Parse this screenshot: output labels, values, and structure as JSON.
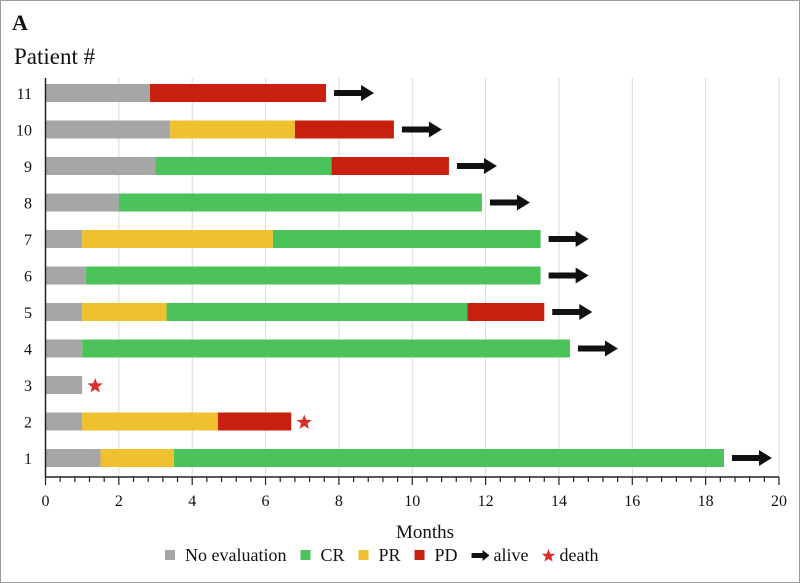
{
  "panel_label": "A",
  "chart_data": {
    "type": "bar",
    "orientation": "horizontal-stacked",
    "title": "",
    "ylabel": "Patient #",
    "xlabel": "Months",
    "xlim": [
      0,
      20
    ],
    "x_major_ticks": [
      0,
      2,
      4,
      6,
      8,
      10,
      12,
      14,
      16,
      18,
      20
    ],
    "x_minor_tick_step": 0.4,
    "grid": "vertical, major ticks",
    "legend_position": "bottom",
    "categories": [
      "1",
      "2",
      "3",
      "4",
      "5",
      "6",
      "7",
      "8",
      "9",
      "10",
      "11"
    ],
    "status_colors": {
      "No evaluation": "#A6A6A6",
      "CR": "#4CC35A",
      "PR": "#EFC12E",
      "PD": "#C8200F"
    },
    "marker_colors": {
      "alive": "#111111",
      "death": "#D9302A"
    },
    "patients": [
      {
        "id": "1",
        "segments": [
          {
            "status": "No evaluation",
            "start": 0,
            "end": 1.5
          },
          {
            "status": "PR",
            "start": 1.5,
            "end": 3.5
          },
          {
            "status": "CR",
            "start": 3.5,
            "end": 18.5
          }
        ],
        "outcome": "alive"
      },
      {
        "id": "2",
        "segments": [
          {
            "status": "No evaluation",
            "start": 0,
            "end": 1.0
          },
          {
            "status": "PR",
            "start": 1.0,
            "end": 4.7
          },
          {
            "status": "PD",
            "start": 4.7,
            "end": 6.7
          }
        ],
        "outcome": "death"
      },
      {
        "id": "3",
        "segments": [
          {
            "status": "No evaluation",
            "start": 0,
            "end": 1.0
          }
        ],
        "outcome": "death"
      },
      {
        "id": "4",
        "segments": [
          {
            "status": "No evaluation",
            "start": 0,
            "end": 1.0
          },
          {
            "status": "CR",
            "start": 1.0,
            "end": 14.3
          }
        ],
        "outcome": "alive"
      },
      {
        "id": "5",
        "segments": [
          {
            "status": "No evaluation",
            "start": 0,
            "end": 1.0
          },
          {
            "status": "PR",
            "start": 1.0,
            "end": 3.3
          },
          {
            "status": "CR",
            "start": 3.3,
            "end": 11.5
          },
          {
            "status": "PD",
            "start": 11.5,
            "end": 13.6
          }
        ],
        "outcome": "alive"
      },
      {
        "id": "6",
        "segments": [
          {
            "status": "No evaluation",
            "start": 0,
            "end": 1.1
          },
          {
            "status": "CR",
            "start": 1.1,
            "end": 13.5
          }
        ],
        "outcome": "alive"
      },
      {
        "id": "7",
        "segments": [
          {
            "status": "No evaluation",
            "start": 0,
            "end": 1.0
          },
          {
            "status": "PR",
            "start": 1.0,
            "end": 6.2
          },
          {
            "status": "CR",
            "start": 6.2,
            "end": 13.5
          }
        ],
        "outcome": "alive"
      },
      {
        "id": "8",
        "segments": [
          {
            "status": "No evaluation",
            "start": 0,
            "end": 2.0
          },
          {
            "status": "CR",
            "start": 2.0,
            "end": 11.9
          }
        ],
        "outcome": "alive"
      },
      {
        "id": "9",
        "segments": [
          {
            "status": "No evaluation",
            "start": 0,
            "end": 3.0
          },
          {
            "status": "CR",
            "start": 3.0,
            "end": 7.8
          },
          {
            "status": "PD",
            "start": 7.8,
            "end": 11.0
          }
        ],
        "outcome": "alive"
      },
      {
        "id": "10",
        "segments": [
          {
            "status": "No evaluation",
            "start": 0,
            "end": 3.4
          },
          {
            "status": "PR",
            "start": 3.4,
            "end": 6.8
          },
          {
            "status": "PD",
            "start": 6.8,
            "end": 9.5
          }
        ],
        "outcome": "alive"
      },
      {
        "id": "11",
        "segments": [
          {
            "status": "No evaluation",
            "start": 0,
            "end": 2.85
          },
          {
            "status": "PD",
            "start": 2.85,
            "end": 7.65
          }
        ],
        "outcome": "alive"
      }
    ],
    "legend": [
      {
        "label": "No evaluation",
        "kind": "swatch",
        "key": "No evaluation"
      },
      {
        "label": "CR",
        "kind": "swatch",
        "key": "CR"
      },
      {
        "label": "PR",
        "kind": "swatch",
        "key": "PR"
      },
      {
        "label": "PD",
        "kind": "swatch",
        "key": "PD"
      },
      {
        "label": "alive",
        "kind": "arrow",
        "key": "alive"
      },
      {
        "label": "death",
        "kind": "star",
        "key": "death"
      }
    ]
  }
}
